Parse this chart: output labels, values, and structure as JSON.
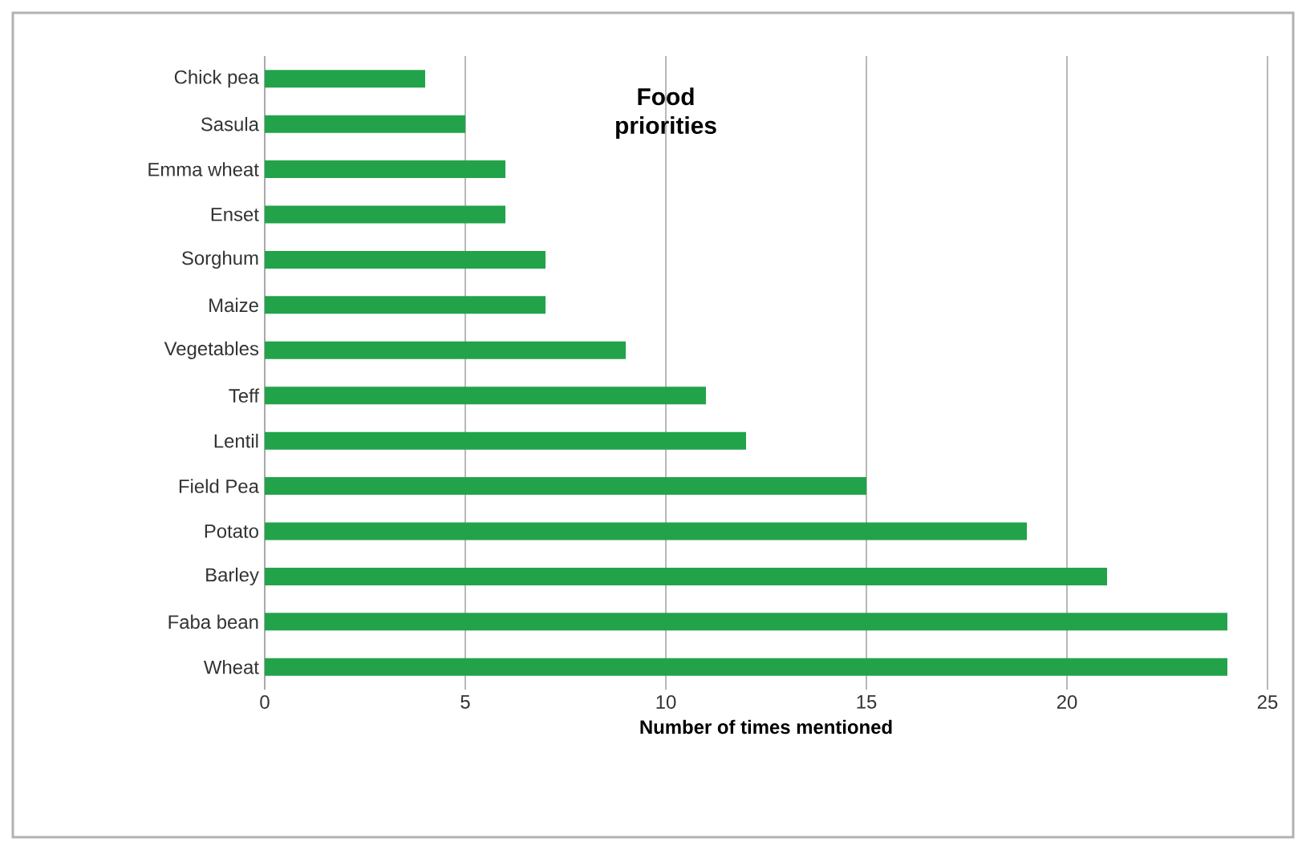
{
  "chart_data": {
    "type": "bar",
    "orientation": "horizontal",
    "title": "Food priorities",
    "xlabel": "Number of times mentioned",
    "categories": [
      "Chick pea",
      "Sasula",
      "Emma wheat",
      "Enset",
      "Sorghum",
      "Maize",
      "Vegetables",
      "Teff",
      "Lentil",
      "Field Pea",
      "Potato",
      "Barley",
      "Faba bean",
      "Wheat"
    ],
    "values": [
      4,
      5,
      6,
      6,
      7,
      7,
      9,
      11,
      12,
      15,
      19,
      21,
      24,
      24
    ],
    "color": "#22a34a",
    "xlim": [
      0,
      25
    ],
    "xticks": [
      0,
      5,
      10,
      15,
      20,
      25
    ],
    "grid": "x"
  }
}
